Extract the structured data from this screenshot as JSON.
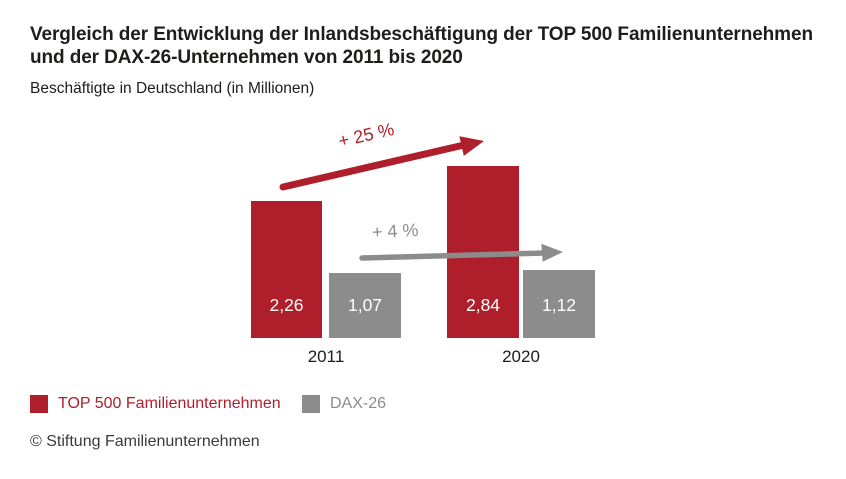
{
  "header": {
    "title_lines": [
      "Vergleich der Entwicklung der Inlandsbeschäftigung der TOP 500 Familienunternehmen",
      "und der DAX-26-Unternehmen von 2011 bis 2020"
    ],
    "subtitle": "Beschäftigte in Deutschland (in Millionen)"
  },
  "chart_data": {
    "type": "bar",
    "title": "Vergleich der Entwicklung der Inlandsbeschäftigung der TOP 500 Familienunternehmen und der DAX-26-Unternehmen von 2011 bis 2020",
    "subtitle": "Beschäftigte in Deutschland (in Millionen)",
    "categories": [
      "2011",
      "2020"
    ],
    "series": [
      {
        "name": "TOP 500 Familienunternehmen",
        "values": [
          2.26,
          2.84
        ],
        "value_labels": [
          "2,26",
          "2,84"
        ],
        "color": "#AE1F2B",
        "value_label_color": "#FFFFFF",
        "growth_annotation": "+ 25 %"
      },
      {
        "name": "DAX-26",
        "values": [
          1.07,
          1.12
        ],
        "value_labels": [
          "1,07",
          "1,12"
        ],
        "color": "#8C8C8C",
        "value_label_color": "#FFFFFF",
        "growth_annotation": "+ 4 %"
      }
    ],
    "ylim": [
      0,
      3
    ],
    "grid": false,
    "axes_visible": false,
    "legend_position": "bottom-left",
    "annotations": [
      {
        "text": "+ 25 %",
        "refers_to": "TOP 500 Familienunternehmen",
        "color": "#AE1F2B"
      },
      {
        "text": "+ 4 %",
        "refers_to": "DAX-26",
        "color": "#8C8C8C"
      }
    ]
  },
  "footer": {
    "copyright": "© Stiftung Familienunternehmen"
  }
}
